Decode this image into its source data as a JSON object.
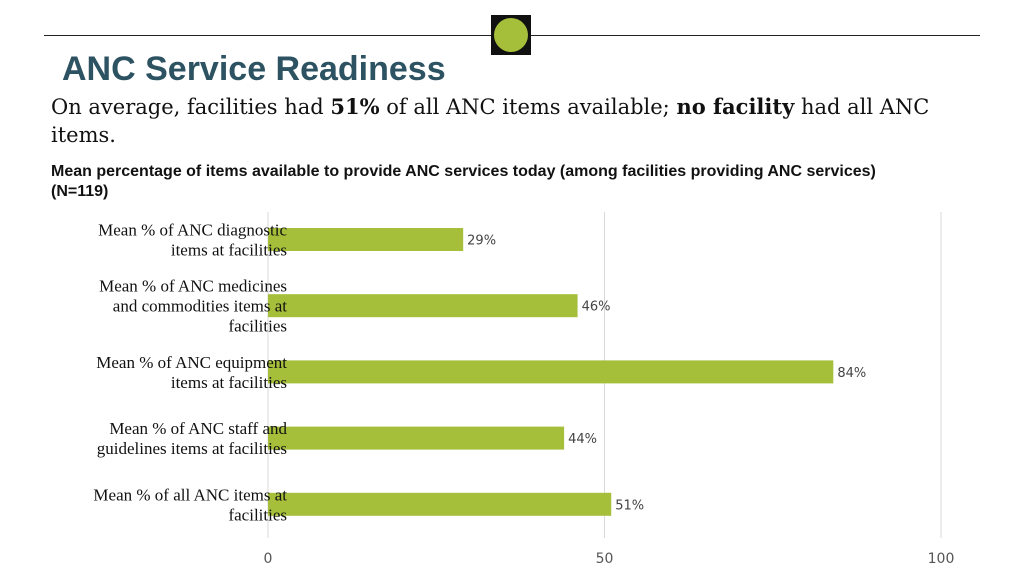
{
  "header": {
    "title": "ANC Service Readiness",
    "lead_before": "On average, facilities had ",
    "lead_bold1": "51%",
    "lead_middle": " of all ANC items available; ",
    "lead_bold2": "no facility",
    "lead_after": " had all ANC items.",
    "logo_color": "#a5bf3a"
  },
  "chart_data": {
    "type": "bar",
    "orientation": "horizontal",
    "title": "Mean percentage of items available to provide ANC services today (among facilities providing ANC services) (N=119)",
    "categories": [
      [
        "Mean % of ANC diagnostic",
        "items at facilities"
      ],
      [
        "Mean % of ANC medicines",
        "and commodities items at",
        "facilities"
      ],
      [
        "Mean % of ANC equipment",
        "items at facilities"
      ],
      [
        "Mean % of ANC staff and",
        "guidelines items at facilities"
      ],
      [
        "Mean % of all ANC items at",
        "facilities"
      ]
    ],
    "values": [
      29,
      46,
      84,
      44,
      51
    ],
    "value_labels": [
      "29%",
      "46%",
      "84%",
      "44%",
      "51%"
    ],
    "xlim": [
      0,
      100
    ],
    "xticks": [
      "0",
      "50",
      "100"
    ],
    "grid": true,
    "bar_color": "#a5bf3a"
  }
}
